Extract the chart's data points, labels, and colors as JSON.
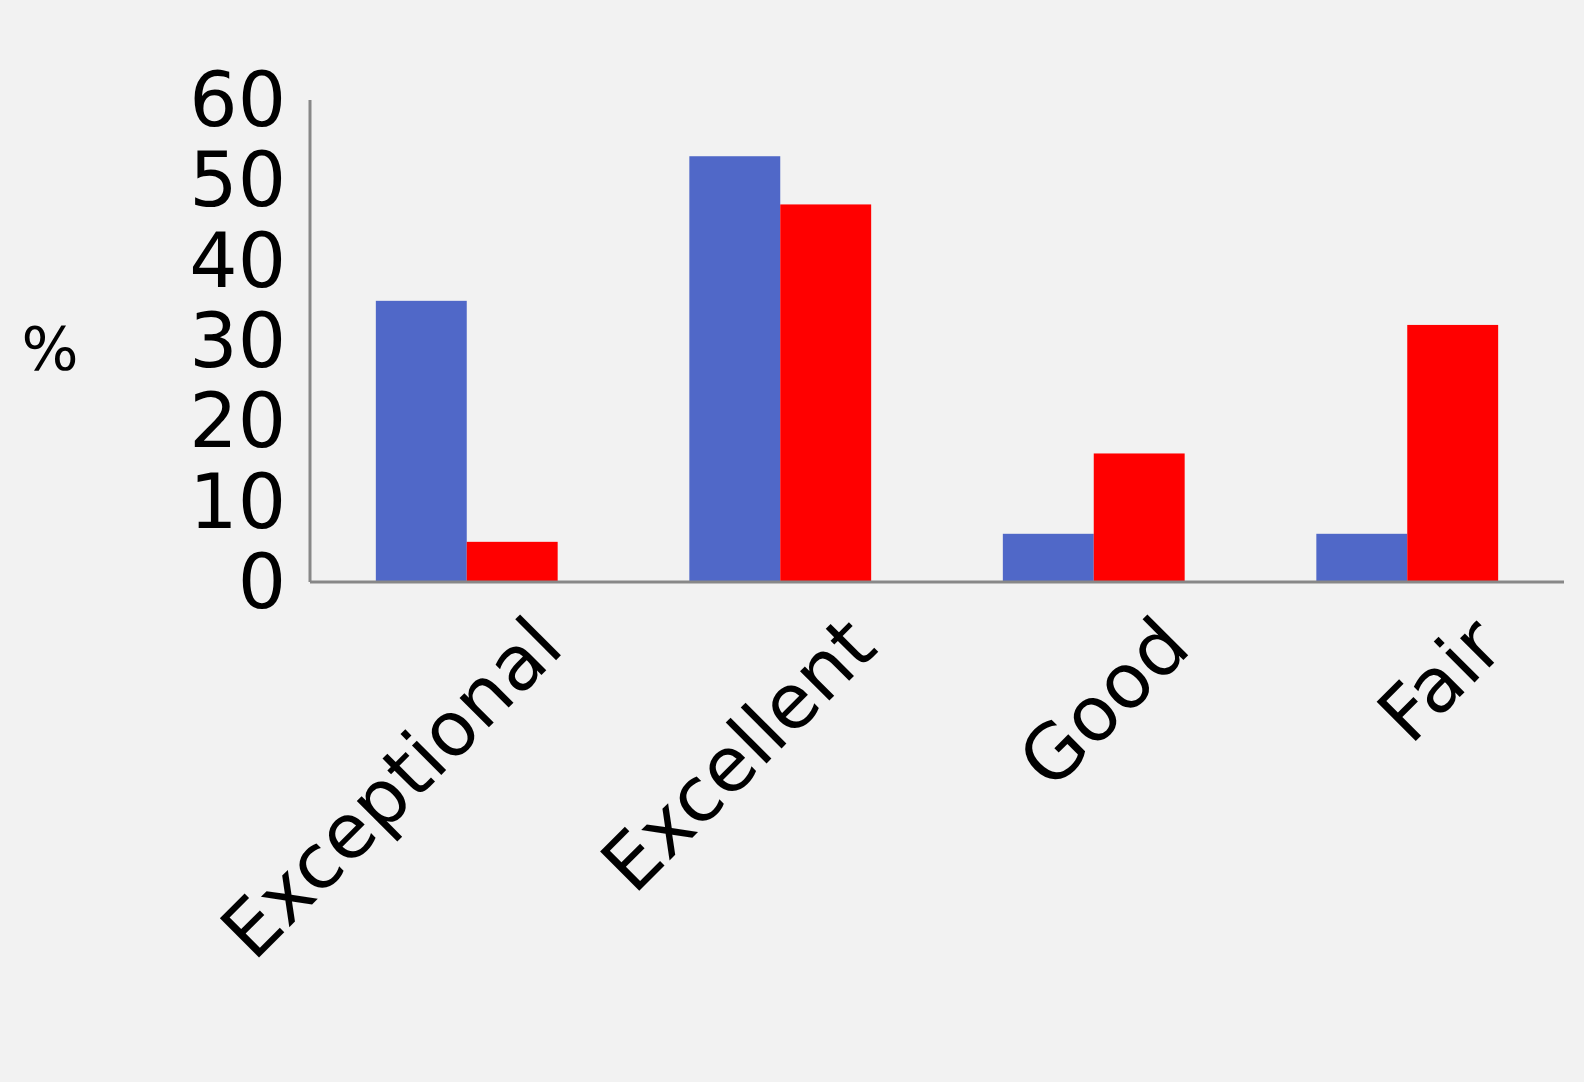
{
  "chart_data": {
    "type": "bar",
    "ylabel": "%",
    "categories": [
      "Exceptional",
      "Excellent",
      "Good",
      "Fair"
    ],
    "series": [
      {
        "color": "#5068c8",
        "values": [
          35,
          53,
          6,
          6
        ]
      },
      {
        "color": "#ff0000",
        "values": [
          5,
          47,
          16,
          32
        ]
      }
    ],
    "ylim": [
      0,
      60
    ],
    "yticks": [
      0,
      10,
      20,
      30,
      40,
      50,
      60
    ],
    "grid": false
  }
}
